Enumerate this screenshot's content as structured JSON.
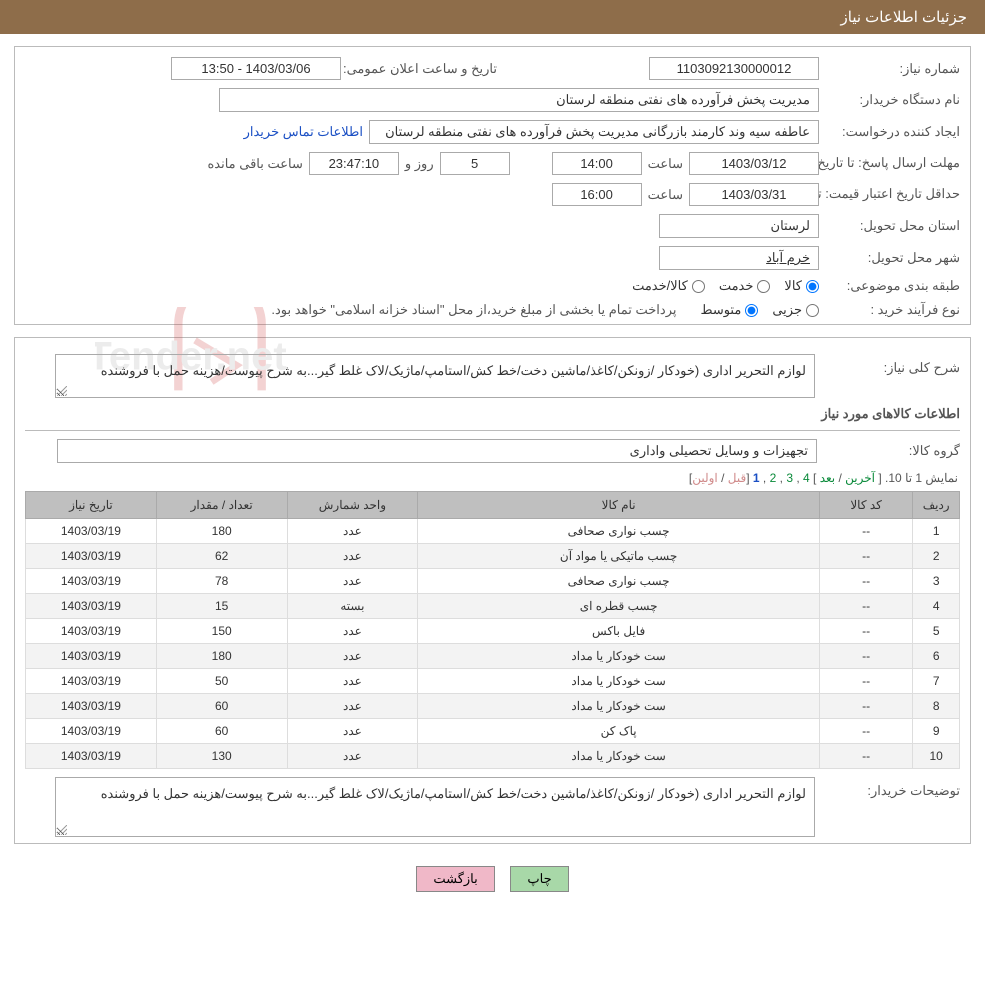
{
  "colors": {
    "header_bg": "#8e6d4a",
    "header_text": "#ffffff",
    "border": "#bbbbbb",
    "input_border": "#aaaaaa",
    "link": "#1a4fc4",
    "pager_link": "#0a8a3a",
    "pager_disabled": "#d08a8a",
    "th_bg": "#bfbfbf",
    "row_alt": "#f3f3f3",
    "btn_green": "#a8d8a8",
    "btn_pink": "#f0b8c8",
    "watermark_red": "#c93a3a",
    "watermark_gray": "#b8b8b8"
  },
  "header": {
    "title": "جزئیات اطلاعات نیاز"
  },
  "labels": {
    "need_no": "شماره نیاز:",
    "announce": "تاریخ و ساعت اعلان عمومی:",
    "buyer_org": "نام دستگاه خریدار:",
    "requester": "ایجاد کننده درخواست:",
    "deadline": "مهلت ارسال پاسخ:",
    "until_date": "تا تاریخ:",
    "hour": "ساعت",
    "days_and": "روز و",
    "remaining": "ساعت باقی مانده",
    "price_validity": "حداقل تاریخ اعتبار قیمت:",
    "delivery_province": "استان محل تحویل:",
    "delivery_city": "شهر محل تحویل:",
    "subject_class": "طبقه بندی موضوعی:",
    "purchase_type": "نوع فرآیند خرید :",
    "radio_goods": "کالا",
    "radio_service": "خدمت",
    "radio_goods_service": "کالا/خدمت",
    "radio_partial": "جزیی",
    "radio_medium": "متوسط",
    "general_desc": "شرح کلی نیاز:",
    "goods_info": "اطلاعات کالاهای مورد نیاز",
    "goods_group": "گروه کالا:",
    "buyer_notes": "توضیحات خریدار:",
    "contact_link": "اطلاعات تماس خریدار"
  },
  "values": {
    "need_no": "1103092130000012",
    "announce": "1403/03/06 - 13:50",
    "buyer_org": "مدیریت پخش فرآورده های نفتی منطقه لرستان",
    "requester": "عاطفه سیه وند کارمند بازرگانی مدیریت پخش فرآورده های نفتی منطقه لرستان",
    "deadline_date": "1403/03/12",
    "deadline_hour": "14:00",
    "days_left": "5",
    "time_left": "23:47:10",
    "price_validity_date": "1403/03/31",
    "price_validity_hour": "16:00",
    "province": "لرستان",
    "city": "خرم آباد",
    "purchase_note": "پرداخت تمام یا بخشی از مبلغ خرید،از محل \"اسناد خزانه اسلامی\" خواهد بود.",
    "general_desc": "لوازم التحریر اداری (خودکار /زونکن/کاغذ/ماشین دخت/خط کش/استامپ/ماژیک/لاک غلط گیر...به شرح پیوست/هزینه حمل با فروشنده",
    "goods_group": "تجهیزات و وسایل تحصیلی واداری",
    "buyer_notes": "لوازم التحریر اداری (خودکار /زونکن/کاغذ/ماشین دخت/خط کش/استامپ/ماژیک/لاک غلط گیر...به شرح پیوست/هزینه حمل با فروشنده"
  },
  "radios": {
    "subject_selected_index": 0,
    "purchase_selected_index": 1
  },
  "pager": {
    "prefix": "نمایش 1 تا 10. ",
    "last": "آخرین",
    "next": "بعد",
    "pages": [
      "4",
      "3",
      "2"
    ],
    "current": "1",
    "prev": "قبل",
    "first": "اولین"
  },
  "table": {
    "columns": [
      "ردیف",
      "کد کالا",
      "نام کالا",
      "واحد شمارش",
      "تعداد / مقدار",
      "تاریخ نیاز"
    ],
    "col_widths_pct": [
      5,
      10,
      43,
      14,
      14,
      14
    ],
    "rows": [
      [
        "1",
        "--",
        "چسب نواری صحافی",
        "عدد",
        "180",
        "1403/03/19"
      ],
      [
        "2",
        "--",
        "چسب ماتیکی یا مواد آن",
        "عدد",
        "62",
        "1403/03/19"
      ],
      [
        "3",
        "--",
        "چسب نواری صحافی",
        "عدد",
        "78",
        "1403/03/19"
      ],
      [
        "4",
        "--",
        "چسب قطره ای",
        "بسته",
        "15",
        "1403/03/19"
      ],
      [
        "5",
        "--",
        "فایل باکس",
        "عدد",
        "150",
        "1403/03/19"
      ],
      [
        "6",
        "--",
        "ست خودکار یا مداد",
        "عدد",
        "180",
        "1403/03/19"
      ],
      [
        "7",
        "--",
        "ست خودکار یا مداد",
        "عدد",
        "50",
        "1403/03/19"
      ],
      [
        "8",
        "--",
        "ست خودکار یا مداد",
        "عدد",
        "60",
        "1403/03/19"
      ],
      [
        "9",
        "--",
        "پاک کن",
        "عدد",
        "60",
        "1403/03/19"
      ],
      [
        "10",
        "--",
        "ست خودکار یا مداد",
        "عدد",
        "130",
        "1403/03/19"
      ]
    ]
  },
  "buttons": {
    "print": "چاپ",
    "back": "بازگشت"
  },
  "watermark_text": "AriaTender.net"
}
